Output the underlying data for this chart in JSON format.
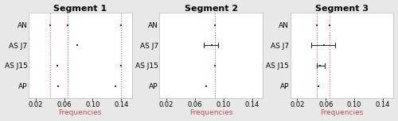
{
  "segments": [
    "Segment 1",
    "Segment 2",
    "Segment 3"
  ],
  "methods": [
    "AN",
    "AS J7",
    "AS J15",
    "AP"
  ],
  "xlim": [
    0.01,
    0.155
  ],
  "xticks": [
    0.02,
    0.06,
    0.1,
    0.14
  ],
  "xlabel": "Frequencies",
  "title_fontsize": 8,
  "label_fontsize": 6.5,
  "tick_fontsize": 6,
  "true_lines": {
    "seg1": [
      0.04,
      0.065,
      0.14
    ],
    "seg2": [
      0.088
    ],
    "seg3": [
      0.047,
      0.065
    ]
  },
  "points": {
    "seg1": {
      "AN": [
        0.04,
        0.065,
        0.14
      ],
      "AS J7": [
        0.078
      ],
      "AS J15": [
        0.05,
        0.14
      ],
      "AP": [
        0.052,
        0.132
      ]
    },
    "seg2": {
      "AN": [
        0.088
      ],
      "AS J7": [
        0.083
      ],
      "AS J15": [
        0.088
      ],
      "AP": [
        0.076
      ]
    },
    "seg3": {
      "AN": [
        0.047,
        0.065
      ],
      "AS J7": [
        0.057
      ],
      "AS J15": [
        0.052
      ],
      "AP": [
        0.05
      ]
    }
  },
  "credible_intervals": {
    "seg1": {
      "AN": null,
      "AS J7": null,
      "AS J15": null,
      "AP": null
    },
    "seg2": {
      "AN": null,
      "AS J7": [
        0.072,
        0.092
      ],
      "AS J15": null,
      "AP": null
    },
    "seg3": {
      "AN": null,
      "AS J7": [
        0.04,
        0.073
      ],
      "AS J15": [
        0.047,
        0.058
      ],
      "AP": null
    }
  },
  "point_color": "#2a2a2a",
  "true_line_color": "#d04040",
  "ci_color": "#2a2a2a",
  "background_color": "#e8e8e8",
  "plot_bg_color": "#ffffff",
  "xlabel_color": "#c05050",
  "spine_color": "#bbbbbb"
}
